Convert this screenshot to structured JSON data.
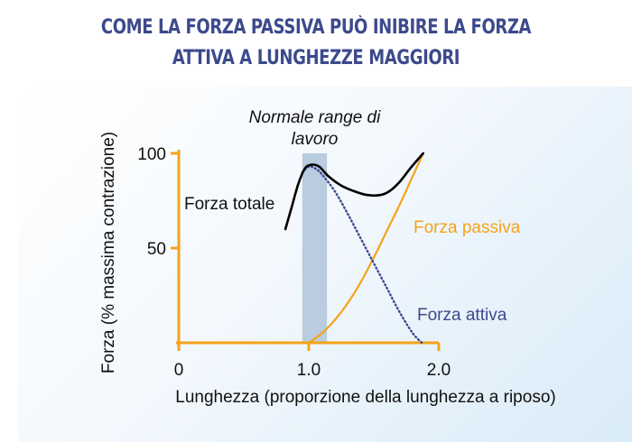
{
  "title_lines": [
    "COME LA FORZA PASSIVA PUÒ INIBIRE LA FORZA",
    "ATTIVA A LUNGHEZZE MAGGIORI"
  ],
  "chart_data": {
    "type": "line",
    "xlabel": "Lunghezza (proporzione della lunghezza a riposo)",
    "ylabel": "Forza (% massima contrazione)",
    "xlim": [
      0,
      2.0
    ],
    "ylim": [
      0,
      100
    ],
    "x_ticks": [
      "0",
      "1.0",
      "2.0"
    ],
    "y_ticks": [
      "100",
      "50"
    ],
    "x_tick_values": [
      0,
      1.0,
      2.0
    ],
    "y_tick_values": [
      100,
      50
    ],
    "band": {
      "label": "Normale range di lavoro",
      "label_lines": [
        "Normale range di",
        "lavoro"
      ],
      "x_start": 0.95,
      "x_end": 1.14
    },
    "series": [
      {
        "name": "Forza totale",
        "style": "solid",
        "color": "#000000",
        "x": [
          0.82,
          0.87,
          0.92,
          0.97,
          1.02,
          1.08,
          1.15,
          1.25,
          1.35,
          1.45,
          1.55,
          1.62,
          1.7,
          1.78,
          1.88
        ],
        "y": [
          60,
          72,
          84,
          92,
          94,
          93,
          88,
          83,
          80,
          78,
          78,
          80,
          85,
          92,
          100
        ]
      },
      {
        "name": "Forza passiva",
        "style": "solid",
        "color": "#f5a31a",
        "x": [
          1.0,
          1.1,
          1.2,
          1.3,
          1.4,
          1.5,
          1.6,
          1.7,
          1.8,
          1.88
        ],
        "y": [
          0,
          5,
          12,
          21,
          32,
          45,
          59,
          73,
          88,
          100
        ]
      },
      {
        "name": "Forza attiva",
        "style": "dotted",
        "color": "#3c4a8c",
        "x": [
          0.95,
          1.0,
          1.05,
          1.1,
          1.2,
          1.3,
          1.4,
          1.5,
          1.6,
          1.7,
          1.8,
          1.87
        ],
        "y": [
          90,
          93,
          92,
          89,
          80,
          68,
          55,
          42,
          29,
          16,
          5,
          0
        ]
      }
    ],
    "grid": false
  },
  "colors": {
    "axis": "#f5a31a",
    "band": "#b9cce0",
    "title": "#3c4a8c",
    "attiva_label": "#3c4a8c",
    "passiva_label": "#f5a31a"
  }
}
